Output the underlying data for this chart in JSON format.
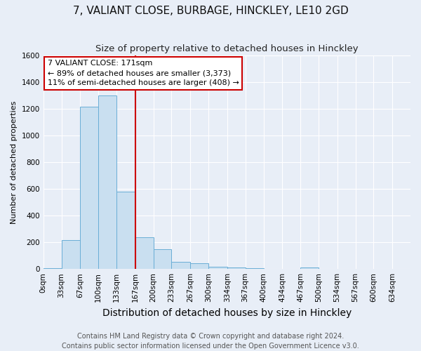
{
  "title": "7, VALIANT CLOSE, BURBAGE, HINCKLEY, LE10 2GD",
  "subtitle": "Size of property relative to detached houses in Hinckley",
  "xlabel": "Distribution of detached houses by size in Hinckley",
  "ylabel": "Number of detached properties",
  "footer_line1": "Contains HM Land Registry data © Crown copyright and database right 2024.",
  "footer_line2": "Contains public sector information licensed under the Open Government Licence v3.0.",
  "bins": [
    0,
    33,
    67,
    100,
    133,
    167,
    200,
    233,
    267,
    300,
    334,
    367,
    400,
    434,
    467,
    500,
    534,
    567,
    600,
    634,
    667
  ],
  "values": [
    5,
    215,
    1220,
    1300,
    580,
    240,
    150,
    55,
    45,
    15,
    13,
    5,
    3,
    0,
    12,
    0,
    0,
    0,
    0,
    0
  ],
  "bar_color": "#c9dff0",
  "bar_edge_color": "#6aaed6",
  "property_line_x": 167,
  "property_line_color": "#cc0000",
  "annotation_line1": "7 VALIANT CLOSE: 171sqm",
  "annotation_line2": "← 89% of detached houses are smaller (3,373)",
  "annotation_line3": "11% of semi-detached houses are larger (408) →",
  "annotation_box_color": "#cc0000",
  "ylim": [
    0,
    1600
  ],
  "yticks": [
    0,
    200,
    400,
    600,
    800,
    1000,
    1200,
    1400,
    1600
  ],
  "background_color": "#e8eef7",
  "plot_background": "#e8eef7",
  "grid_color": "#ffffff",
  "title_fontsize": 11,
  "subtitle_fontsize": 9.5,
  "xlabel_fontsize": 10,
  "ylabel_fontsize": 8,
  "tick_fontsize": 7.5,
  "annotation_fontsize": 8,
  "footer_fontsize": 7
}
